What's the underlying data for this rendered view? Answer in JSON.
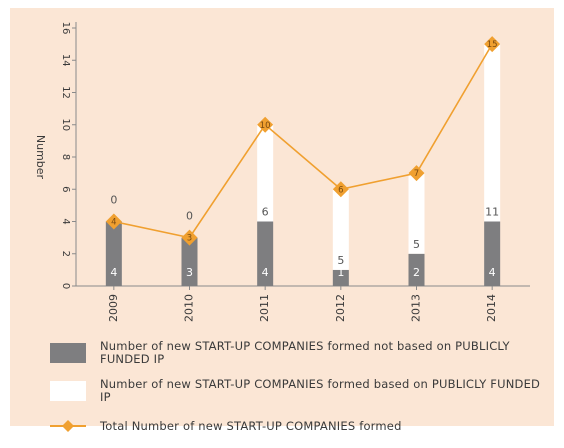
{
  "chart_data": {
    "type": "bar",
    "stacked": true,
    "categories": [
      "2009",
      "2010",
      "2011",
      "2012",
      "2013",
      "2014"
    ],
    "ylabel": "Number",
    "xlabel": "",
    "ylim": [
      0,
      16
    ],
    "yticks": [
      0,
      2,
      4,
      6,
      8,
      10,
      12,
      14,
      16
    ],
    "series": [
      {
        "name": "Number of new START-UP COMPANIES formed not based on PUBLICLY FUNDED IP",
        "values": [
          4,
          3,
          4,
          1,
          2,
          4
        ],
        "color": "#7e7e80"
      },
      {
        "name": "Number of new START-UP COMPANIES formed based on PUBLICLY FUNDED IP",
        "values": [
          0,
          0,
          6,
          5,
          5,
          11
        ],
        "color": "#ffffff"
      },
      {
        "name": "Total Number of new START-UP COMPANIES formed",
        "values": [
          4,
          3,
          10,
          6,
          7,
          15
        ],
        "color": "#f0a030",
        "type": "line"
      }
    ],
    "grid": false,
    "legend_position": "bottom"
  },
  "colors": {
    "background": "#fbe6d5",
    "axis": "#8a8a8a",
    "text": "#3a3a3a"
  }
}
